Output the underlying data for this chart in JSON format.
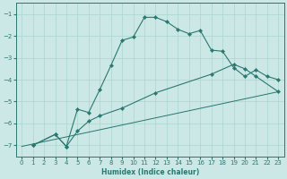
{
  "xlabel": "Humidex (Indice chaleur)",
  "xlim": [
    -0.5,
    23.5
  ],
  "ylim": [
    -7.5,
    -0.5
  ],
  "bg_color": "#cce8e6",
  "grid_color": "#aad4d0",
  "line_color": "#2a7870",
  "line1_x": [
    1,
    3,
    4,
    5,
    6,
    7,
    8,
    9,
    10,
    11,
    12,
    13,
    14,
    15,
    16,
    17,
    18,
    19,
    20,
    21,
    22,
    23
  ],
  "line1_y": [
    -7.0,
    -6.5,
    -7.05,
    -5.35,
    -5.5,
    -4.45,
    -3.35,
    -2.2,
    -2.05,
    -1.15,
    -1.15,
    -1.35,
    -1.7,
    -1.9,
    -1.75,
    -2.65,
    -2.7,
    -3.45,
    -3.85,
    -3.55,
    -3.85,
    -4.0
  ],
  "line2_x": [
    1,
    3,
    4,
    5,
    6,
    7,
    9,
    12,
    17,
    19,
    20,
    21,
    23
  ],
  "line2_y": [
    -7.0,
    -6.5,
    -7.05,
    -6.35,
    -5.9,
    -5.65,
    -5.3,
    -4.6,
    -3.75,
    -3.3,
    -3.5,
    -3.85,
    -4.55
  ],
  "line3_x": [
    0,
    23
  ],
  "line3_y": [
    -7.05,
    -4.55
  ],
  "xticks": [
    0,
    1,
    2,
    3,
    4,
    5,
    6,
    7,
    8,
    9,
    10,
    11,
    12,
    13,
    14,
    15,
    16,
    17,
    18,
    19,
    20,
    21,
    22,
    23
  ],
  "yticks": [
    -7,
    -6,
    -5,
    -4,
    -3,
    -2,
    -1
  ],
  "xlabel_fontsize": 5.5,
  "tick_fontsize": 5.0,
  "linewidth": 0.8,
  "markersize": 2.2
}
